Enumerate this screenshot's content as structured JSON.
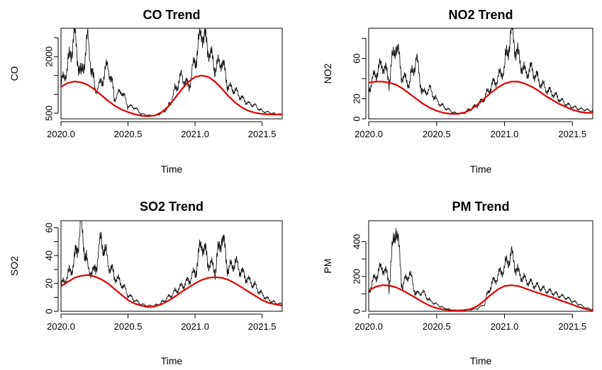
{
  "chart_data": [
    {
      "type": "line",
      "title": "CO Trend",
      "xlabel": "Time",
      "ylabel": "CO",
      "xlim": [
        2020.0,
        2021.65
      ],
      "ylim": [
        350,
        2750
      ],
      "x_ticks": [
        2020.0,
        2020.5,
        2021.0,
        2021.5
      ],
      "x_tick_labels": [
        "2020.0",
        "2020.5",
        "2021.0",
        "2021.5"
      ],
      "y_ticks": [
        500,
        2000
      ],
      "y_tick_labels": [
        "500",
        "2000"
      ],
      "y_minor_ticks": [
        1000,
        1500,
        2500
      ],
      "grid": false,
      "series": [
        {
          "role": "observed",
          "color": "#000000",
          "x": [
            2020.0,
            2020.05,
            2020.1,
            2020.15,
            2020.2,
            2020.25,
            2020.3,
            2020.35,
            2020.4,
            2020.45,
            2020.5,
            2020.55,
            2020.6,
            2020.65,
            2020.7,
            2020.75,
            2020.8,
            2020.85,
            2020.9,
            2020.95,
            2021.0,
            2021.05,
            2021.1,
            2021.15,
            2021.2,
            2021.25,
            2021.3,
            2021.35,
            2021.4,
            2021.45,
            2021.5,
            2021.55,
            2021.6,
            2021.65
          ],
          "y": [
            1250,
            1700,
            2600,
            1400,
            2500,
            1100,
            1300,
            1800,
            900,
            1100,
            700,
            650,
            480,
            450,
            430,
            500,
            650,
            1100,
            1500,
            1200,
            1900,
            2700,
            2200,
            1700,
            1900,
            1200,
            1100,
            900,
            750,
            700,
            550,
            520,
            480,
            470
          ]
        },
        {
          "role": "smoothed",
          "color": "#e00000",
          "x": [
            2020.0,
            2020.05,
            2020.1,
            2020.15,
            2020.2,
            2020.25,
            2020.3,
            2020.35,
            2020.4,
            2020.45,
            2020.5,
            2020.55,
            2020.6,
            2020.65,
            2020.7,
            2020.75,
            2020.8,
            2020.85,
            2020.9,
            2020.95,
            2021.0,
            2021.05,
            2021.1,
            2021.15,
            2021.2,
            2021.25,
            2021.3,
            2021.35,
            2021.4,
            2021.45,
            2021.5,
            2021.55,
            2021.6,
            2021.65
          ],
          "y": [
            1200,
            1300,
            1340,
            1320,
            1250,
            1130,
            980,
            830,
            700,
            600,
            530,
            470,
            430,
            420,
            440,
            520,
            680,
            900,
            1130,
            1330,
            1460,
            1500,
            1460,
            1330,
            1150,
            950,
            780,
            650,
            560,
            510,
            480,
            470,
            465,
            465
          ]
        }
      ]
    },
    {
      "type": "line",
      "title": "NO2 Trend",
      "xlabel": "Time",
      "ylabel": "NO2",
      "xlim": [
        2020.0,
        2021.65
      ],
      "ylim": [
        0,
        90
      ],
      "x_ticks": [
        2020.0,
        2020.5,
        2021.0,
        2021.5
      ],
      "x_tick_labels": [
        "2020.0",
        "2020.5",
        "2021.0",
        "2021.5"
      ],
      "y_ticks": [
        0,
        20,
        60
      ],
      "y_tick_labels": [
        "0",
        "20",
        "60"
      ],
      "y_minor_ticks": [
        40,
        80
      ],
      "grid": false,
      "series": [
        {
          "role": "observed",
          "color": "#000000",
          "x": [
            2020.0,
            2020.05,
            2020.1,
            2020.15,
            2020.2,
            2020.25,
            2020.3,
            2020.35,
            2020.4,
            2020.45,
            2020.5,
            2020.55,
            2020.6,
            2020.65,
            2020.7,
            2020.75,
            2020.8,
            2020.85,
            2020.9,
            2020.95,
            2021.0,
            2021.05,
            2021.1,
            2021.15,
            2021.2,
            2021.25,
            2021.3,
            2021.35,
            2021.4,
            2021.45,
            2021.5,
            2021.55,
            2021.6,
            2021.65
          ],
          "y": [
            30,
            45,
            55,
            40,
            75,
            42,
            35,
            60,
            25,
            30,
            18,
            12,
            8,
            5,
            6,
            10,
            14,
            20,
            32,
            40,
            50,
            88,
            62,
            45,
            50,
            38,
            30,
            26,
            20,
            15,
            12,
            10,
            9,
            8
          ]
        },
        {
          "role": "smoothed",
          "color": "#e00000",
          "x": [
            2020.0,
            2020.05,
            2020.1,
            2020.15,
            2020.2,
            2020.25,
            2020.3,
            2020.35,
            2020.4,
            2020.45,
            2020.5,
            2020.55,
            2020.6,
            2020.65,
            2020.7,
            2020.75,
            2020.8,
            2020.85,
            2020.9,
            2020.95,
            2021.0,
            2021.05,
            2021.1,
            2021.15,
            2021.2,
            2021.25,
            2021.3,
            2021.35,
            2021.4,
            2021.45,
            2021.5,
            2021.55,
            2021.6,
            2021.65
          ],
          "y": [
            36,
            37,
            37,
            36,
            34,
            30,
            25,
            20,
            15,
            11,
            8,
            6,
            5,
            5,
            6,
            9,
            14,
            20,
            26,
            31,
            35,
            37,
            37,
            35,
            32,
            28,
            23,
            19,
            15,
            12,
            9,
            7,
            6,
            6
          ]
        }
      ]
    },
    {
      "type": "line",
      "title": "SO2 Trend",
      "xlabel": "Time",
      "ylabel": "SO2",
      "xlim": [
        2020.0,
        2021.65
      ],
      "ylim": [
        0,
        65
      ],
      "x_ticks": [
        2020.0,
        2020.5,
        2021.0,
        2021.5
      ],
      "x_tick_labels": [
        "2020.0",
        "2020.5",
        "2021.0",
        "2021.5"
      ],
      "y_ticks": [
        0,
        20,
        40,
        60
      ],
      "y_tick_labels": [
        "0",
        "20",
        "40",
        "60"
      ],
      "y_minor_ticks": [
        10,
        30,
        50
      ],
      "grid": false,
      "series": [
        {
          "role": "observed",
          "color": "#000000",
          "x": [
            2020.0,
            2020.05,
            2020.1,
            2020.15,
            2020.2,
            2020.25,
            2020.3,
            2020.35,
            2020.4,
            2020.45,
            2020.5,
            2020.55,
            2020.6,
            2020.65,
            2020.7,
            2020.75,
            2020.8,
            2020.85,
            2020.9,
            2020.95,
            2021.0,
            2021.05,
            2021.1,
            2021.15,
            2021.2,
            2021.25,
            2021.3,
            2021.35,
            2021.4,
            2021.45,
            2021.5,
            2021.55,
            2021.6,
            2021.65
          ],
          "y": [
            18,
            25,
            35,
            62,
            30,
            28,
            52,
            35,
            25,
            20,
            12,
            8,
            5,
            4,
            4,
            6,
            10,
            14,
            18,
            22,
            28,
            50,
            35,
            30,
            55,
            30,
            35,
            28,
            22,
            18,
            12,
            8,
            6,
            5
          ]
        },
        {
          "role": "smoothed",
          "color": "#e00000",
          "x": [
            2020.0,
            2020.05,
            2020.1,
            2020.15,
            2020.2,
            2020.25,
            2020.3,
            2020.35,
            2020.4,
            2020.45,
            2020.5,
            2020.55,
            2020.6,
            2020.65,
            2020.7,
            2020.75,
            2020.8,
            2020.85,
            2020.9,
            2020.95,
            2021.0,
            2021.05,
            2021.1,
            2021.15,
            2021.2,
            2021.25,
            2021.3,
            2021.35,
            2021.4,
            2021.45,
            2021.5,
            2021.55,
            2021.6,
            2021.65
          ],
          "y": [
            18,
            21,
            24,
            25.5,
            26,
            25,
            23,
            20,
            16,
            12,
            8,
            5.5,
            4,
            3,
            3.5,
            5,
            7.5,
            10.5,
            14,
            17,
            20,
            22.5,
            24,
            24.5,
            24,
            22.5,
            20,
            17,
            14,
            11,
            8,
            6,
            5,
            4
          ]
        }
      ]
    },
    {
      "type": "line",
      "title": "PM Trend",
      "xlabel": "Time",
      "ylabel": "PM",
      "xlim": [
        2020.0,
        2021.65
      ],
      "ylim": [
        0,
        520
      ],
      "x_ticks": [
        2020.0,
        2020.5,
        2021.0,
        2021.5
      ],
      "x_tick_labels": [
        "2020.0",
        "2020.5",
        "2021.0",
        "2021.5"
      ],
      "y_ticks": [
        0,
        200,
        400
      ],
      "y_tick_labels": [
        "0",
        "200",
        "400"
      ],
      "y_minor_ticks": [
        100,
        300
      ],
      "grid": false,
      "series": [
        {
          "role": "observed",
          "color": "#000000",
          "x": [
            2020.0,
            2020.05,
            2020.1,
            2020.15,
            2020.2,
            2020.25,
            2020.3,
            2020.35,
            2020.4,
            2020.45,
            2020.5,
            2020.55,
            2020.6,
            2020.65,
            2020.7,
            2020.75,
            2020.8,
            2020.85,
            2020.9,
            2020.95,
            2021.0,
            2021.05,
            2021.1,
            2021.15,
            2021.2,
            2021.25,
            2021.3,
            2021.35,
            2021.4,
            2021.45,
            2021.5,
            2021.55,
            2021.6,
            2021.65
          ],
          "y": [
            120,
            200,
            260,
            180,
            500,
            150,
            220,
            100,
            110,
            60,
            40,
            20,
            10,
            6,
            5,
            8,
            15,
            40,
            150,
            200,
            250,
            330,
            220,
            180,
            160,
            140,
            120,
            110,
            90,
            80,
            60,
            40,
            20,
            10
          ]
        },
        {
          "role": "smoothed",
          "color": "#e00000",
          "x": [
            2020.0,
            2020.05,
            2020.1,
            2020.15,
            2020.2,
            2020.25,
            2020.3,
            2020.35,
            2020.4,
            2020.45,
            2020.5,
            2020.55,
            2020.6,
            2020.65,
            2020.7,
            2020.75,
            2020.8,
            2020.85,
            2020.9,
            2020.95,
            2021.0,
            2021.05,
            2021.1,
            2021.15,
            2021.2,
            2021.25,
            2021.3,
            2021.35,
            2021.4,
            2021.45,
            2021.5,
            2021.55,
            2021.6,
            2021.65
          ],
          "y": [
            120,
            140,
            150,
            148,
            138,
            120,
            98,
            75,
            52,
            32,
            18,
            10,
            6,
            5,
            6,
            12,
            30,
            60,
            95,
            125,
            145,
            150,
            145,
            132,
            118,
            105,
            92,
            80,
            66,
            52,
            38,
            24,
            12,
            5
          ]
        }
      ]
    }
  ]
}
